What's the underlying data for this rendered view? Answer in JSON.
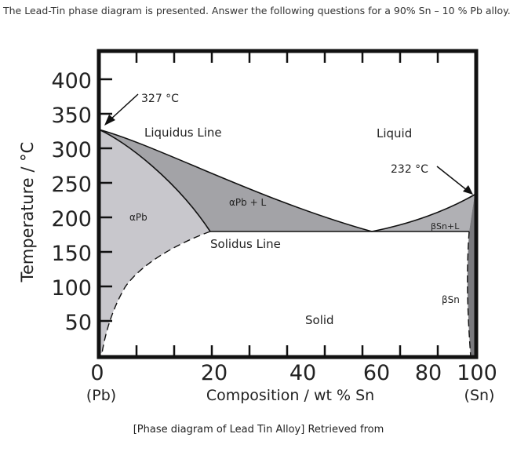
{
  "question": "The Lead-Tin phase diagram is presented. Answer the following questions for a 90% Sn – 10 % Pb alloy.",
  "caption": "[Phase diagram of Lead Tin Alloy] Retrieved from",
  "diagram": {
    "y_axis_label": "Temperature / °C",
    "x_axis_label": "Composition / wt % Sn",
    "y_ticks": [
      "400",
      "350",
      "300",
      "250",
      "200",
      "150",
      "100",
      "50"
    ],
    "x_ticks": [
      "0",
      "20",
      "40",
      "60",
      "80",
      "100"
    ],
    "x_end_labels": {
      "left": "(Pb)",
      "right": "(Sn)"
    },
    "annotations": {
      "pb_melting": "327 °C",
      "sn_melting": "232 °C",
      "liquidus": "Liquidus Line",
      "solidus": "Solidus Line",
      "liquid": "Liquid",
      "alpha_pb": "αPb",
      "alpha_pb_liquid": "αPb + L",
      "beta_sn_liquid": "βSn+L",
      "beta_sn": "βSn",
      "solid": "Solid"
    },
    "colors": {
      "alpha_region": "#c8c7cc",
      "two_phase_region": "#a3a3a7",
      "beta_region": "#7a7a7e",
      "frame": "#111111"
    }
  }
}
